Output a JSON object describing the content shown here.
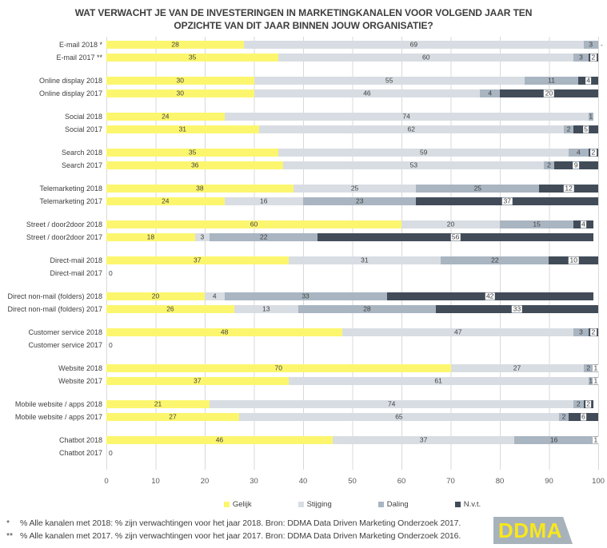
{
  "title": {
    "line1": "WAT VERWACHT JE VAN DE INVESTERINGEN IN MARKETINGKANALEN VOOR VOLGEND JAAR TEN",
    "line2": "OPZICHTE VAN DIT JAAR BINNEN JOUW ORGANISATIE?"
  },
  "footnotes": [
    {
      "marker": "*",
      "text": "% Alle kanalen met 2018: % zijn verwachtingen voor het jaar 2018. Bron: DDMA Data Driven Marketing Onderzoek 2017."
    },
    {
      "marker": "**",
      "text": "% Alle kanalen met 2017. % zijn verwachtingen voor het jaar 2017. Bron: DDMA Data Driven Marketing Onderzoek 2016."
    }
  ],
  "logo": {
    "text": "DDMA",
    "bg_color": "#a8b2ba",
    "text_color": "#f8e71c"
  },
  "chart_data": {
    "type": "bar",
    "orientation": "horizontal-stacked",
    "grid": true,
    "x_axis": {
      "min": 0,
      "max": 100,
      "tick_step": 10,
      "ticks": [
        0,
        10,
        20,
        30,
        40,
        50,
        60,
        70,
        80,
        90,
        100
      ]
    },
    "legend_position": "bottom",
    "legend": [
      {
        "key": "gelijk",
        "label": "Gelijk",
        "color": "#fcf66e"
      },
      {
        "key": "stijging",
        "label": "Stijging",
        "color": "#d8dde3"
      },
      {
        "key": "daling",
        "label": "Daling",
        "color": "#a9b5c1"
      },
      {
        "key": "nvt",
        "label": "N.v.t.",
        "color": "#424c59"
      }
    ],
    "groups": [
      {
        "name": "E-mail",
        "rows": [
          {
            "label": "E-mail 2018 *",
            "values": [
              28,
              69,
              3,
              0
            ],
            "labels": [
              "28",
              "69",
              "3",
              ""
            ],
            "after": "-"
          },
          {
            "label": "E-mail 2017 **",
            "values": [
              35,
              60,
              3,
              2
            ],
            "labels": [
              "35",
              "60",
              "3",
              "2"
            ],
            "after": ""
          }
        ]
      },
      {
        "name": "Online display",
        "rows": [
          {
            "label": "Online display 2018",
            "values": [
              30,
              55,
              11,
              4
            ],
            "labels": [
              "30",
              "55",
              "11",
              "4"
            ],
            "after": ""
          },
          {
            "label": "Online display 2017",
            "values": [
              30,
              46,
              4,
              20
            ],
            "labels": [
              "30",
              "46",
              "4",
              "20"
            ],
            "after": ""
          }
        ]
      },
      {
        "name": "Social",
        "rows": [
          {
            "label": "Social 2018",
            "values": [
              24,
              74,
              1,
              0
            ],
            "labels": [
              "24",
              "74",
              "1",
              ""
            ],
            "after": ""
          },
          {
            "label": "Social 2017",
            "values": [
              31,
              62,
              2,
              5
            ],
            "labels": [
              "31",
              "62",
              "2",
              "5"
            ],
            "after": ""
          }
        ]
      },
      {
        "name": "Search",
        "rows": [
          {
            "label": "Search 2018",
            "values": [
              35,
              59,
              4,
              2
            ],
            "labels": [
              "35",
              "59",
              "4",
              "2"
            ],
            "after": ""
          },
          {
            "label": "Search 2017",
            "values": [
              36,
              53,
              2,
              9
            ],
            "labels": [
              "36",
              "53",
              "2",
              "9"
            ],
            "after": ""
          }
        ]
      },
      {
        "name": "Telemarketing",
        "rows": [
          {
            "label": "Telemarketing 2018",
            "values": [
              38,
              25,
              25,
              12
            ],
            "labels": [
              "38",
              "25",
              "25",
              "12"
            ],
            "after": ""
          },
          {
            "label": "Telemarketing 2017",
            "values": [
              24,
              16,
              23,
              37
            ],
            "labels": [
              "24",
              "16",
              "23",
              "37"
            ],
            "after": ""
          }
        ]
      },
      {
        "name": "Street / door2door",
        "rows": [
          {
            "label": "Street / door2door 2018",
            "values": [
              60,
              20,
              15,
              4
            ],
            "labels": [
              "60",
              "20",
              "15",
              "4"
            ],
            "after": ""
          },
          {
            "label": "Street / door2door 2017",
            "values": [
              18,
              3,
              22,
              56
            ],
            "labels": [
              "18",
              "3",
              "22",
              "56"
            ],
            "after": ""
          }
        ]
      },
      {
        "name": "Direct-mail",
        "rows": [
          {
            "label": "Direct-mail 2018",
            "values": [
              37,
              31,
              22,
              10
            ],
            "labels": [
              "37",
              "31",
              "22",
              "10"
            ],
            "after": ""
          },
          {
            "label": "Direct-mail 2017",
            "values": [
              0,
              0,
              0,
              0
            ],
            "labels": [
              "",
              "",
              "",
              ""
            ],
            "after": "0"
          }
        ]
      },
      {
        "name": "Direct non-mail (folders)",
        "rows": [
          {
            "label": "Direct non-mail (folders) 2018",
            "values": [
              20,
              4,
              33,
              42
            ],
            "labels": [
              "20",
              "4",
              "33",
              "42"
            ],
            "after": ""
          },
          {
            "label": "Direct non-mail (folders)  2017",
            "values": [
              26,
              13,
              28,
              33
            ],
            "labels": [
              "26",
              "13",
              "28",
              "33"
            ],
            "after": ""
          }
        ]
      },
      {
        "name": "Customer service",
        "rows": [
          {
            "label": "Customer service 2018",
            "values": [
              48,
              47,
              3,
              2
            ],
            "labels": [
              "48",
              "47",
              "3",
              "2"
            ],
            "after": ""
          },
          {
            "label": "Customer service 2017",
            "values": [
              0,
              0,
              0,
              0
            ],
            "labels": [
              "",
              "",
              "",
              ""
            ],
            "after": "0"
          }
        ]
      },
      {
        "name": "Website",
        "rows": [
          {
            "label": "Website 2018",
            "values": [
              70,
              27,
              2,
              1
            ],
            "labels": [
              "70",
              "27",
              "2",
              "1"
            ],
            "after": ""
          },
          {
            "label": "Website 2017",
            "values": [
              37,
              61,
              1,
              1
            ],
            "labels": [
              "37",
              "61",
              "1",
              "1"
            ],
            "after": ""
          }
        ]
      },
      {
        "name": "Mobile website / apps",
        "rows": [
          {
            "label": "Mobile website / apps 2018",
            "values": [
              21,
              74,
              2,
              2
            ],
            "labels": [
              "21",
              "74",
              "2",
              "2"
            ],
            "after": ""
          },
          {
            "label": "Mobile website / apps 2017",
            "values": [
              27,
              65,
              2,
              6
            ],
            "labels": [
              "27",
              "65",
              "2",
              "6"
            ],
            "after": ""
          }
        ]
      },
      {
        "name": "Chatbot",
        "rows": [
          {
            "label": "Chatbot 2018",
            "values": [
              46,
              37,
              16,
              1
            ],
            "labels": [
              "46",
              "37",
              "16",
              "1"
            ],
            "after": ""
          },
          {
            "label": "Chatbot 2017",
            "values": [
              0,
              0,
              0,
              0
            ],
            "labels": [
              "",
              "",
              "",
              ""
            ],
            "after": "0"
          }
        ]
      }
    ]
  }
}
